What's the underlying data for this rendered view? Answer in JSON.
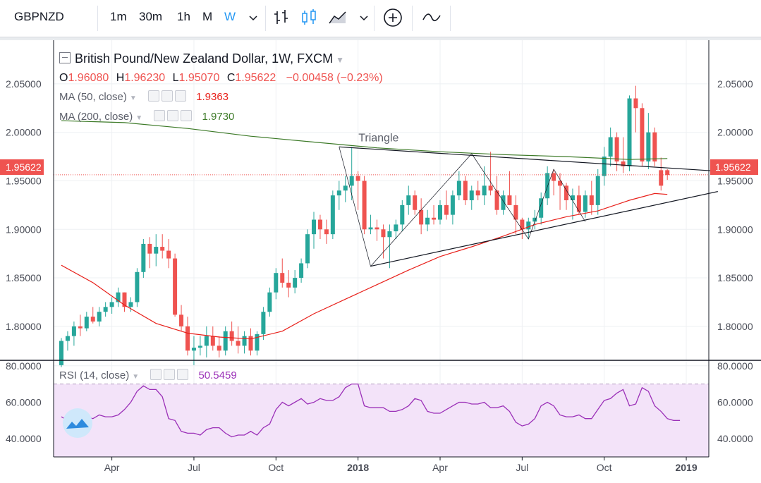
{
  "toolbar": {
    "symbol": "GBPNZD",
    "timeframes": [
      "1m",
      "30m",
      "1h",
      "M",
      "W"
    ],
    "active_timeframe": "W",
    "icons": [
      "chevron-down-icon",
      "bar-chart-icon",
      "candles-icon",
      "area-chart-icon",
      "chevron-down-icon",
      "add-indicator-icon",
      "compare-icon"
    ]
  },
  "legend": {
    "title": "British Pound/New Zealand Dollar, 1W, FXCM",
    "o_label": "O",
    "o": "1.96080",
    "h_label": "H",
    "h": "1.96230",
    "l_label": "L",
    "l": "1.95070",
    "c_label": "C",
    "c": "1.95622",
    "change": "−0.00458 (−0.23%)",
    "ma50_label": "MA (50, close)",
    "ma50_value": "1.9363",
    "ma200_label": "MA (200, close)",
    "ma200_value": "1.9730",
    "rsi_label": "RSI (14, close)",
    "rsi_value": "50.5459"
  },
  "annotation": "Triangle",
  "price_label": "1.95622",
  "colors": {
    "up": "#26a69a",
    "down": "#ef5350",
    "ma50": "#e8201a",
    "ma200": "#3d7a28",
    "rsi": "#9b30b8",
    "rsi_band": "#f3e3f9",
    "price_line": "#ef5350"
  },
  "chart_data": [
    {
      "type": "candlestick",
      "title": "British Pound/New Zealand Dollar, 1W, FXCM",
      "ylim": [
        1.765,
        2.095
      ],
      "y_ticks": [
        "1.80000",
        "1.85000",
        "1.90000",
        "1.95000",
        "2.00000",
        "2.05000"
      ],
      "x_tick_labels": [
        "Apr",
        "Jul",
        "Oct",
        "2018",
        "Apr",
        "Jul",
        "Oct",
        "2019"
      ],
      "x_tick_weeks": [
        8,
        21,
        34,
        47,
        60,
        73,
        86,
        99
      ],
      "candles": [
        [
          1.76,
          1.788,
          1.758,
          1.785
        ],
        [
          1.785,
          1.795,
          1.775,
          1.79
        ],
        [
          1.79,
          1.805,
          1.78,
          1.8
        ],
        [
          1.8,
          1.812,
          1.79,
          1.798
        ],
        [
          1.798,
          1.815,
          1.795,
          1.81
        ],
        [
          1.81,
          1.82,
          1.803,
          1.805
        ],
        [
          1.805,
          1.82,
          1.8,
          1.815
        ],
        [
          1.815,
          1.825,
          1.81,
          1.82
        ],
        [
          1.82,
          1.83,
          1.813,
          1.825
        ],
        [
          1.825,
          1.84,
          1.82,
          1.835
        ],
        [
          1.835,
          1.835,
          1.815,
          1.82
        ],
        [
          1.82,
          1.83,
          1.815,
          1.825
        ],
        [
          1.825,
          1.86,
          1.82,
          1.856
        ],
        [
          1.856,
          1.89,
          1.85,
          1.885
        ],
        [
          1.885,
          1.892,
          1.86,
          1.875
        ],
        [
          1.875,
          1.895,
          1.862,
          1.882
        ],
        [
          1.882,
          1.895,
          1.87,
          1.878
        ],
        [
          1.878,
          1.89,
          1.86,
          1.87
        ],
        [
          1.87,
          1.875,
          1.81,
          1.812
        ],
        [
          1.812,
          1.822,
          1.795,
          1.8
        ],
        [
          1.8,
          1.81,
          1.77,
          1.775
        ],
        [
          1.775,
          1.79,
          1.76,
          1.778
        ],
        [
          1.778,
          1.79,
          1.77,
          1.78
        ],
        [
          1.78,
          1.8,
          1.768,
          1.79
        ],
        [
          1.79,
          1.8,
          1.775,
          1.78
        ],
        [
          1.78,
          1.79,
          1.768,
          1.775
        ],
        [
          1.775,
          1.8,
          1.77,
          1.795
        ],
        [
          1.795,
          1.805,
          1.78,
          1.785
        ],
        [
          1.785,
          1.8,
          1.772,
          1.78
        ],
        [
          1.78,
          1.795,
          1.772,
          1.79
        ],
        [
          1.79,
          1.798,
          1.77,
          1.775
        ],
        [
          1.775,
          1.795,
          1.77,
          1.792
        ],
        [
          1.792,
          1.82,
          1.786,
          1.815
        ],
        [
          1.815,
          1.84,
          1.81,
          1.835
        ],
        [
          1.835,
          1.86,
          1.828,
          1.855
        ],
        [
          1.855,
          1.87,
          1.84,
          1.845
        ],
        [
          1.845,
          1.858,
          1.83,
          1.84
        ],
        [
          1.84,
          1.858,
          1.834,
          1.85
        ],
        [
          1.85,
          1.87,
          1.845,
          1.865
        ],
        [
          1.865,
          1.9,
          1.86,
          1.895
        ],
        [
          1.895,
          1.918,
          1.88,
          1.91
        ],
        [
          1.91,
          1.915,
          1.89,
          1.9
        ],
        [
          1.9,
          1.91,
          1.885,
          1.895
        ],
        [
          1.895,
          1.94,
          1.89,
          1.935
        ],
        [
          1.935,
          1.95,
          1.92,
          1.94
        ],
        [
          1.94,
          1.955,
          1.928,
          1.945
        ],
        [
          1.945,
          1.985,
          1.93,
          1.955
        ],
        [
          1.955,
          1.96,
          1.92,
          1.95
        ],
        [
          1.95,
          1.955,
          1.895,
          1.9
        ],
        [
          1.9,
          1.915,
          1.895,
          1.902
        ],
        [
          1.902,
          1.91,
          1.888,
          1.9
        ],
        [
          1.9,
          1.905,
          1.87,
          1.892
        ],
        [
          1.892,
          1.905,
          1.86,
          1.898
        ],
        [
          1.898,
          1.91,
          1.89,
          1.905
        ],
        [
          1.905,
          1.93,
          1.898,
          1.925
        ],
        [
          1.925,
          1.945,
          1.915,
          1.935
        ],
        [
          1.935,
          1.94,
          1.915,
          1.92
        ],
        [
          1.92,
          1.932,
          1.895,
          1.905
        ],
        [
          1.905,
          1.92,
          1.898,
          1.912
        ],
        [
          1.912,
          1.925,
          1.905,
          1.91
        ],
        [
          1.91,
          1.93,
          1.905,
          1.925
        ],
        [
          1.925,
          1.94,
          1.91,
          1.915
        ],
        [
          1.915,
          1.94,
          1.905,
          1.935
        ],
        [
          1.935,
          1.96,
          1.93,
          1.95
        ],
        [
          1.95,
          1.955,
          1.925,
          1.93
        ],
        [
          1.93,
          1.945,
          1.92,
          1.94
        ],
        [
          1.94,
          1.95,
          1.93,
          1.935
        ],
        [
          1.935,
          1.965,
          1.925,
          1.945
        ],
        [
          1.945,
          1.98,
          1.935,
          1.94
        ],
        [
          1.94,
          1.955,
          1.915,
          1.92
        ],
        [
          1.92,
          1.94,
          1.915,
          1.935
        ],
        [
          1.935,
          1.96,
          1.925,
          1.925
        ],
        [
          1.925,
          1.935,
          1.895,
          1.91
        ],
        [
          1.91,
          1.912,
          1.89,
          1.9
        ],
        [
          1.9,
          1.912,
          1.89,
          1.908
        ],
        [
          1.908,
          1.92,
          1.9,
          1.912
        ],
        [
          1.912,
          1.938,
          1.905,
          1.932
        ],
        [
          1.932,
          1.965,
          1.925,
          1.958
        ],
        [
          1.958,
          1.962,
          1.935,
          1.95
        ],
        [
          1.95,
          1.958,
          1.92,
          1.945
        ],
        [
          1.945,
          1.948,
          1.92,
          1.93
        ],
        [
          1.93,
          1.942,
          1.91,
          1.935
        ],
        [
          1.935,
          1.945,
          1.915,
          1.918
        ],
        [
          1.918,
          1.94,
          1.912,
          1.935
        ],
        [
          1.935,
          1.95,
          1.915,
          1.925
        ],
        [
          1.925,
          1.962,
          1.915,
          1.955
        ],
        [
          1.955,
          1.985,
          1.945,
          1.975
        ],
        [
          1.975,
          2.005,
          1.965,
          1.995
        ],
        [
          1.995,
          2.0,
          1.96,
          1.97
        ],
        [
          1.97,
          1.995,
          1.958,
          1.965
        ],
        [
          1.965,
          2.038,
          1.96,
          2.035
        ],
        [
          2.035,
          2.048,
          2.0,
          2.025
        ],
        [
          2.025,
          2.03,
          1.965,
          1.97
        ],
        [
          1.97,
          2.02,
          1.962,
          2.0
        ],
        [
          2.0,
          2.005,
          1.965,
          1.97
        ],
        [
          1.961,
          1.974,
          1.94,
          1.945
        ],
        [
          1.961,
          1.962,
          1.951,
          1.956
        ]
      ],
      "ma50": [
        [
          0,
          1.863
        ],
        [
          5,
          1.845
        ],
        [
          10,
          1.822
        ],
        [
          15,
          1.803
        ],
        [
          20,
          1.793
        ],
        [
          25,
          1.789
        ],
        [
          30,
          1.787
        ],
        [
          35,
          1.795
        ],
        [
          40,
          1.813
        ],
        [
          45,
          1.828
        ],
        [
          50,
          1.843
        ],
        [
          55,
          1.858
        ],
        [
          60,
          1.872
        ],
        [
          65,
          1.882
        ],
        [
          70,
          1.893
        ],
        [
          75,
          1.905
        ],
        [
          80,
          1.913
        ],
        [
          85,
          1.919
        ],
        [
          90,
          1.93
        ],
        [
          94,
          1.937
        ],
        [
          96,
          1.936
        ]
      ],
      "ma200": [
        [
          0,
          2.012
        ],
        [
          10,
          2.01
        ],
        [
          20,
          2.004
        ],
        [
          30,
          1.996
        ],
        [
          40,
          1.99
        ],
        [
          50,
          1.984
        ],
        [
          60,
          1.98
        ],
        [
          70,
          1.977
        ],
        [
          80,
          1.975
        ],
        [
          90,
          1.972
        ],
        [
          96,
          1.973
        ]
      ],
      "triangle_upper": [
        [
          44,
          1.985
        ],
        [
          104,
          1.96
        ]
      ],
      "triangle_lower": [
        [
          49,
          1.862
        ],
        [
          104,
          1.939
        ]
      ],
      "zigzag": [
        [
          44,
          1.985
        ],
        [
          49,
          1.862
        ],
        [
          65,
          1.978
        ],
        [
          74,
          1.89
        ],
        [
          78,
          1.962
        ],
        [
          83,
          1.908
        ]
      ],
      "current_price": 1.95622
    },
    {
      "type": "line",
      "name": "RSI (14, close)",
      "ylim": [
        30,
        83
      ],
      "y_ticks": [
        "40.0000",
        "60.0000",
        "80.0000"
      ],
      "band": [
        30,
        70
      ],
      "values": [
        52,
        50,
        49,
        50,
        52,
        51,
        53,
        52,
        52,
        53,
        56,
        60,
        66,
        69,
        67,
        67,
        63,
        51,
        50,
        44,
        43,
        43,
        42,
        45,
        46,
        46,
        43,
        41,
        42,
        42,
        44,
        42,
        46,
        48,
        56,
        60,
        58,
        60,
        62,
        59,
        60,
        62,
        61,
        61,
        63,
        68,
        70,
        70,
        58,
        57,
        57,
        57,
        55,
        55,
        56,
        58,
        62,
        61,
        55,
        54,
        54,
        56,
        58,
        60,
        60,
        59,
        59,
        60,
        57,
        57,
        58,
        55,
        49,
        47,
        48,
        51,
        58,
        60,
        58,
        53,
        52,
        52,
        53,
        51,
        51,
        56,
        61,
        62,
        65,
        67,
        58,
        59,
        68,
        66,
        58,
        55,
        51,
        50,
        50
      ]
    }
  ]
}
